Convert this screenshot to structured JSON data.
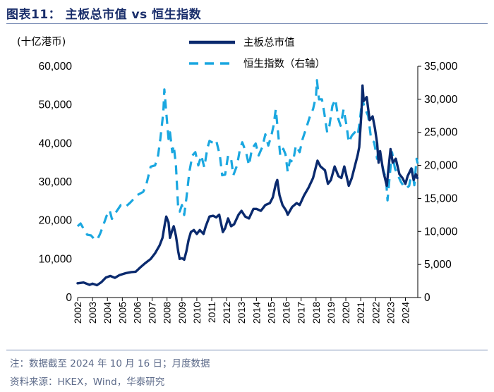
{
  "figure_title": "图表11：  主板总市值 vs 恒生指数",
  "footer": {
    "note": "注：数据截至 2024 年 10 月 16 日；月度数据",
    "source": "资料来源：HKEX，Wind，华泰研究"
  },
  "colors": {
    "series_primary": "#0a2a6e",
    "series_secondary": "#1aa7e0",
    "title": "#1a2e6b",
    "rule": "#7a8db5",
    "footer": "#5d6b8a"
  },
  "chart_data": {
    "type": "line",
    "title": "主板总市值 vs 恒生指数",
    "left_axis": {
      "unit_label": "(十亿港币)",
      "range": [
        0,
        60000
      ],
      "ticks": [
        0,
        10000,
        20000,
        30000,
        40000,
        50000,
        60000
      ],
      "tick_labels": [
        "0",
        "10,000",
        "20,000",
        "30,000",
        "40,000",
        "50,000",
        "60,000"
      ]
    },
    "right_axis": {
      "range": [
        0,
        35000
      ],
      "ticks": [
        0,
        5000,
        10000,
        15000,
        20000,
        25000,
        30000,
        35000
      ],
      "tick_labels": [
        "0",
        "5,000",
        "10,000",
        "15,000",
        "20,000",
        "25,000",
        "30,000",
        "35,000"
      ]
    },
    "x_axis": {
      "range": [
        2002,
        2024.83
      ],
      "ticks": [
        2002,
        2003,
        2004,
        2005,
        2006,
        2007,
        2008,
        2009,
        2010,
        2011,
        2012,
        2013,
        2014,
        2015,
        2016,
        2017,
        2018,
        2019,
        2020,
        2021,
        2022,
        2023,
        2024
      ],
      "tick_labels": [
        "2002",
        "2003",
        "2004",
        "2005",
        "2006",
        "2007",
        "2008",
        "2009",
        "2010",
        "2011",
        "2012",
        "2013",
        "2014",
        "2015",
        "2016",
        "2017",
        "2018",
        "2019",
        "2020",
        "2021",
        "2022",
        "2023",
        "2024"
      ]
    },
    "legend_position": "top-center",
    "series": [
      {
        "name": "主板总市值",
        "axis": "left",
        "style": "solid",
        "color": "#0a2a6e",
        "points": [
          [
            2002.0,
            3700
          ],
          [
            2002.4,
            3900
          ],
          [
            2002.8,
            3300
          ],
          [
            2003.0,
            3600
          ],
          [
            2003.3,
            3200
          ],
          [
            2003.6,
            4000
          ],
          [
            2003.9,
            5200
          ],
          [
            2004.2,
            5600
          ],
          [
            2004.5,
            5100
          ],
          [
            2004.8,
            5800
          ],
          [
            2005.2,
            6300
          ],
          [
            2005.6,
            6600
          ],
          [
            2005.9,
            6700
          ],
          [
            2006.2,
            7800
          ],
          [
            2006.5,
            8800
          ],
          [
            2006.9,
            10000
          ],
          [
            2007.2,
            11500
          ],
          [
            2007.5,
            13500
          ],
          [
            2007.7,
            15500
          ],
          [
            2007.85,
            19000
          ],
          [
            2007.95,
            21000
          ],
          [
            2008.1,
            19500
          ],
          [
            2008.2,
            15500
          ],
          [
            2008.35,
            17500
          ],
          [
            2008.45,
            18500
          ],
          [
            2008.6,
            16000
          ],
          [
            2008.75,
            12000
          ],
          [
            2008.85,
            10000
          ],
          [
            2009.0,
            10200
          ],
          [
            2009.15,
            9800
          ],
          [
            2009.3,
            12000
          ],
          [
            2009.45,
            15000
          ],
          [
            2009.6,
            17000
          ],
          [
            2009.8,
            17500
          ],
          [
            2010.0,
            16500
          ],
          [
            2010.2,
            17500
          ],
          [
            2010.45,
            16500
          ],
          [
            2010.6,
            18500
          ],
          [
            2010.85,
            21000
          ],
          [
            2011.1,
            21200
          ],
          [
            2011.3,
            20800
          ],
          [
            2011.5,
            21500
          ],
          [
            2011.75,
            17000
          ],
          [
            2011.9,
            18000
          ],
          [
            2012.1,
            20500
          ],
          [
            2012.3,
            18500
          ],
          [
            2012.5,
            19000
          ],
          [
            2012.8,
            21500
          ],
          [
            2013.0,
            22500
          ],
          [
            2013.25,
            21000
          ],
          [
            2013.5,
            20500
          ],
          [
            2013.8,
            23000
          ],
          [
            2014.0,
            23000
          ],
          [
            2014.3,
            22500
          ],
          [
            2014.6,
            24000
          ],
          [
            2014.9,
            24500
          ],
          [
            2015.1,
            26000
          ],
          [
            2015.3,
            29500
          ],
          [
            2015.4,
            30500
          ],
          [
            2015.55,
            26500
          ],
          [
            2015.75,
            24000
          ],
          [
            2016.0,
            22500
          ],
          [
            2016.1,
            21500
          ],
          [
            2016.4,
            23500
          ],
          [
            2016.7,
            24500
          ],
          [
            2016.9,
            24000
          ],
          [
            2017.2,
            26500
          ],
          [
            2017.5,
            28500
          ],
          [
            2017.8,
            31000
          ],
          [
            2018.0,
            34000
          ],
          [
            2018.1,
            35500
          ],
          [
            2018.3,
            34000
          ],
          [
            2018.6,
            33000
          ],
          [
            2018.8,
            29500
          ],
          [
            2019.0,
            30500
          ],
          [
            2019.25,
            34000
          ],
          [
            2019.5,
            31500
          ],
          [
            2019.7,
            31000
          ],
          [
            2019.9,
            34000
          ],
          [
            2020.2,
            29000
          ],
          [
            2020.4,
            31000
          ],
          [
            2020.6,
            34000
          ],
          [
            2020.8,
            37000
          ],
          [
            2020.9,
            39000
          ],
          [
            2021.05,
            48000
          ],
          [
            2021.12,
            55000
          ],
          [
            2021.2,
            51000
          ],
          [
            2021.4,
            52000
          ],
          [
            2021.6,
            46000
          ],
          [
            2021.8,
            47000
          ],
          [
            2021.95,
            44000
          ],
          [
            2022.1,
            40000
          ],
          [
            2022.2,
            35000
          ],
          [
            2022.3,
            38000
          ],
          [
            2022.5,
            33000
          ],
          [
            2022.75,
            29000
          ],
          [
            2022.85,
            33000
          ],
          [
            2023.0,
            38500
          ],
          [
            2023.15,
            35000
          ],
          [
            2023.35,
            36000
          ],
          [
            2023.6,
            32000
          ],
          [
            2023.8,
            31000
          ],
          [
            2024.0,
            29500
          ],
          [
            2024.15,
            31500
          ],
          [
            2024.4,
            33500
          ],
          [
            2024.55,
            30500
          ],
          [
            2024.7,
            32000
          ],
          [
            2024.8,
            31000
          ]
        ]
      },
      {
        "name": "恒生指数（右轴）",
        "axis": "right",
        "style": "dashed",
        "color": "#1aa7e0",
        "points": [
          [
            2002.0,
            10800
          ],
          [
            2002.2,
            11200
          ],
          [
            2002.45,
            10200
          ],
          [
            2002.65,
            9500
          ],
          [
            2002.9,
            9400
          ],
          [
            2003.1,
            8900
          ],
          [
            2003.3,
            8700
          ],
          [
            2003.5,
            9600
          ],
          [
            2003.7,
            10800
          ],
          [
            2003.95,
            12400
          ],
          [
            2004.15,
            13200
          ],
          [
            2004.3,
            11900
          ],
          [
            2004.6,
            13000
          ],
          [
            2004.9,
            14000
          ],
          [
            2005.2,
            13700
          ],
          [
            2005.5,
            14300
          ],
          [
            2005.8,
            15000
          ],
          [
            2006.0,
            15500
          ],
          [
            2006.4,
            16000
          ],
          [
            2006.6,
            17000
          ],
          [
            2006.9,
            19800
          ],
          [
            2007.2,
            20000
          ],
          [
            2007.4,
            21500
          ],
          [
            2007.55,
            24000
          ],
          [
            2007.75,
            28000
          ],
          [
            2007.82,
            31500
          ],
          [
            2007.95,
            28000
          ],
          [
            2008.1,
            24000
          ],
          [
            2008.2,
            25000
          ],
          [
            2008.35,
            22000
          ],
          [
            2008.45,
            23000
          ],
          [
            2008.6,
            20000
          ],
          [
            2008.75,
            13500
          ],
          [
            2008.85,
            13000
          ],
          [
            2009.0,
            14000
          ],
          [
            2009.15,
            12500
          ],
          [
            2009.3,
            15000
          ],
          [
            2009.5,
            19000
          ],
          [
            2009.7,
            21500
          ],
          [
            2009.9,
            22000
          ],
          [
            2010.1,
            20000
          ],
          [
            2010.3,
            21500
          ],
          [
            2010.5,
            19700
          ],
          [
            2010.7,
            22500
          ],
          [
            2010.85,
            23700
          ],
          [
            2011.1,
            23400
          ],
          [
            2011.3,
            23800
          ],
          [
            2011.55,
            21500
          ],
          [
            2011.7,
            18500
          ],
          [
            2011.9,
            18600
          ],
          [
            2012.1,
            21500
          ],
          [
            2012.3,
            21000
          ],
          [
            2012.45,
            18500
          ],
          [
            2012.7,
            20000
          ],
          [
            2012.9,
            22500
          ],
          [
            2013.05,
            23500
          ],
          [
            2013.3,
            22000
          ],
          [
            2013.5,
            20000
          ],
          [
            2013.7,
            22500
          ],
          [
            2013.95,
            23300
          ],
          [
            2014.15,
            21500
          ],
          [
            2014.4,
            22800
          ],
          [
            2014.6,
            24700
          ],
          [
            2014.8,
            23000
          ],
          [
            2015.0,
            24500
          ],
          [
            2015.15,
            26000
          ],
          [
            2015.3,
            28500
          ],
          [
            2015.45,
            25000
          ],
          [
            2015.6,
            21500
          ],
          [
            2015.8,
            22500
          ],
          [
            2015.95,
            21700
          ],
          [
            2016.1,
            19000
          ],
          [
            2016.25,
            20800
          ],
          [
            2016.45,
            20500
          ],
          [
            2016.65,
            23000
          ],
          [
            2016.9,
            22000
          ],
          [
            2017.1,
            24000
          ],
          [
            2017.35,
            25700
          ],
          [
            2017.6,
            27500
          ],
          [
            2017.8,
            28500
          ],
          [
            2018.0,
            30500
          ],
          [
            2018.06,
            32900
          ],
          [
            2018.2,
            30000
          ],
          [
            2018.4,
            30000
          ],
          [
            2018.55,
            28000
          ],
          [
            2018.75,
            25000
          ],
          [
            2018.9,
            26000
          ],
          [
            2019.1,
            29000
          ],
          [
            2019.3,
            30000
          ],
          [
            2019.5,
            27000
          ],
          [
            2019.65,
            26000
          ],
          [
            2019.85,
            28500
          ],
          [
            2020.05,
            26000
          ],
          [
            2020.2,
            23500
          ],
          [
            2020.4,
            24500
          ],
          [
            2020.6,
            25000
          ],
          [
            2020.8,
            24500
          ],
          [
            2020.95,
            27000
          ],
          [
            2021.1,
            30000
          ],
          [
            2021.3,
            28500
          ],
          [
            2021.5,
            27500
          ],
          [
            2021.7,
            24000
          ],
          [
            2021.9,
            23500
          ],
          [
            2022.1,
            21000
          ],
          [
            2022.2,
            22500
          ],
          [
            2022.35,
            21000
          ],
          [
            2022.55,
            19000
          ],
          [
            2022.7,
            18000
          ],
          [
            2022.8,
            14700
          ],
          [
            2022.95,
            18500
          ],
          [
            2023.1,
            22000
          ],
          [
            2023.3,
            19500
          ],
          [
            2023.5,
            18500
          ],
          [
            2023.7,
            17500
          ],
          [
            2023.9,
            16800
          ],
          [
            2024.05,
            16500
          ],
          [
            2024.25,
            16900
          ],
          [
            2024.45,
            19500
          ],
          [
            2024.6,
            17000
          ],
          [
            2024.75,
            21000
          ],
          [
            2024.82,
            20300
          ]
        ]
      }
    ]
  }
}
